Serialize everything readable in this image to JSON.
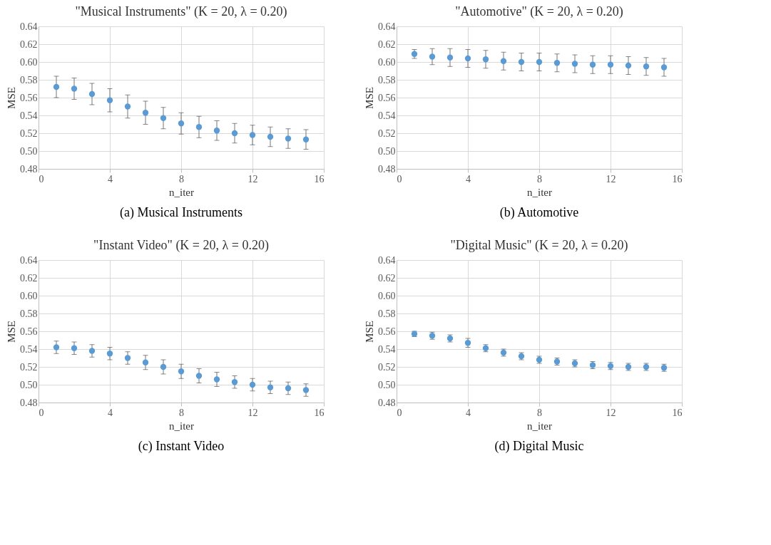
{
  "chart_data": [
    {
      "type": "scatter",
      "title": "\"Musical Instruments\" (K = 20, λ = 0.20)",
      "xlabel": "n_iter",
      "ylabel": "MSE",
      "color": "#5b9bd5",
      "marker": "circle",
      "grid": true,
      "x": [
        1,
        2,
        3,
        4,
        5,
        6,
        7,
        8,
        9,
        10,
        11,
        12,
        13,
        14,
        15
      ],
      "values": [
        0.572,
        0.57,
        0.564,
        0.557,
        0.55,
        0.543,
        0.537,
        0.531,
        0.527,
        0.523,
        0.52,
        0.518,
        0.516,
        0.514,
        0.513
      ],
      "errors": [
        0.012,
        0.012,
        0.012,
        0.013,
        0.013,
        0.013,
        0.012,
        0.012,
        0.012,
        0.011,
        0.011,
        0.011,
        0.011,
        0.011,
        0.011
      ],
      "xlim": [
        0,
        16
      ],
      "xticks": [
        0,
        4,
        8,
        12,
        16
      ],
      "ylim": [
        0.48,
        0.64
      ],
      "yticks": [
        {
          "value": 0.48,
          "label": "0.48"
        },
        {
          "value": 0.5,
          "label": "0.50"
        },
        {
          "value": 0.52,
          "label": "0.52"
        },
        {
          "value": 0.54,
          "label": "0.54"
        },
        {
          "value": 0.56,
          "label": "0.56"
        },
        {
          "value": 0.58,
          "label": "0.58"
        },
        {
          "value": 0.6,
          "label": "0.60"
        },
        {
          "value": 0.62,
          "label": "0.62"
        },
        {
          "value": 0.64,
          "label": "0.64"
        }
      ],
      "annotations": [
        "(a) Musical Instruments"
      ]
    },
    {
      "type": "scatter",
      "title": "\"Automotive\" (K = 20, λ = 0.20)",
      "xlabel": "n_iter",
      "ylabel": "MSE",
      "color": "#5b9bd5",
      "marker": "circle",
      "grid": true,
      "x": [
        1,
        2,
        3,
        4,
        5,
        6,
        7,
        8,
        9,
        10,
        11,
        12,
        13,
        14,
        15
      ],
      "values": [
        0.609,
        0.606,
        0.605,
        0.604,
        0.603,
        0.601,
        0.6,
        0.6,
        0.599,
        0.598,
        0.597,
        0.597,
        0.596,
        0.595,
        0.594
      ],
      "errors": [
        0.005,
        0.009,
        0.01,
        0.01,
        0.01,
        0.01,
        0.01,
        0.01,
        0.01,
        0.01,
        0.01,
        0.01,
        0.01,
        0.01,
        0.01
      ],
      "xlim": [
        0,
        16
      ],
      "xticks": [
        0,
        4,
        8,
        12,
        16
      ],
      "ylim": [
        0.48,
        0.64
      ],
      "yticks": [
        {
          "value": 0.48,
          "label": "0.48"
        },
        {
          "value": 0.5,
          "label": "0.50"
        },
        {
          "value": 0.52,
          "label": "0.52"
        },
        {
          "value": 0.54,
          "label": "0.54"
        },
        {
          "value": 0.56,
          "label": "0.56"
        },
        {
          "value": 0.58,
          "label": "0.58"
        },
        {
          "value": 0.6,
          "label": "0.60"
        },
        {
          "value": 0.62,
          "label": "0.62"
        },
        {
          "value": 0.64,
          "label": "0.64"
        }
      ],
      "annotations": [
        "(b) Automotive"
      ]
    },
    {
      "type": "scatter",
      "title": "\"Instant Video\" (K = 20, λ = 0.20)",
      "xlabel": "n_iter",
      "ylabel": "MSE",
      "color": "#5b9bd5",
      "marker": "circle",
      "grid": true,
      "x": [
        1,
        2,
        3,
        4,
        5,
        6,
        7,
        8,
        9,
        10,
        11,
        12,
        13,
        14,
        15
      ],
      "values": [
        0.542,
        0.541,
        0.538,
        0.535,
        0.53,
        0.525,
        0.52,
        0.515,
        0.51,
        0.506,
        0.503,
        0.5,
        0.497,
        0.496,
        0.494
      ],
      "errors": [
        0.007,
        0.007,
        0.007,
        0.007,
        0.007,
        0.008,
        0.008,
        0.008,
        0.008,
        0.008,
        0.007,
        0.007,
        0.007,
        0.007,
        0.007
      ],
      "xlim": [
        0,
        16
      ],
      "xticks": [
        0,
        4,
        8,
        12,
        16
      ],
      "ylim": [
        0.48,
        0.64
      ],
      "yticks": [
        {
          "value": 0.48,
          "label": "0.48"
        },
        {
          "value": 0.5,
          "label": "0.50"
        },
        {
          "value": 0.52,
          "label": "0.52"
        },
        {
          "value": 0.54,
          "label": "0.54"
        },
        {
          "value": 0.56,
          "label": "0.56"
        },
        {
          "value": 0.58,
          "label": "0.58"
        },
        {
          "value": 0.6,
          "label": "0.60"
        },
        {
          "value": 0.62,
          "label": "0.62"
        },
        {
          "value": 0.64,
          "label": "0.64"
        }
      ],
      "annotations": [
        "(c) Instant Video"
      ]
    },
    {
      "type": "scatter",
      "title": "\"Digital Music\" (K = 20, λ = 0.20)",
      "xlabel": "n_iter",
      "ylabel": "MSE",
      "color": "#5b9bd5",
      "marker": "circle",
      "grid": true,
      "x": [
        1,
        2,
        3,
        4,
        5,
        6,
        7,
        8,
        9,
        10,
        11,
        12,
        13,
        14,
        15
      ],
      "values": [
        0.557,
        0.555,
        0.552,
        0.547,
        0.541,
        0.536,
        0.532,
        0.528,
        0.526,
        0.524,
        0.522,
        0.521,
        0.52,
        0.52,
        0.519
      ],
      "errors": [
        0.003,
        0.004,
        0.004,
        0.005,
        0.004,
        0.004,
        0.004,
        0.004,
        0.004,
        0.004,
        0.004,
        0.004,
        0.004,
        0.004,
        0.004
      ],
      "xlim": [
        0,
        16
      ],
      "xticks": [
        0,
        4,
        8,
        12,
        16
      ],
      "ylim": [
        0.48,
        0.64
      ],
      "yticks": [
        {
          "value": 0.48,
          "label": "0.48"
        },
        {
          "value": 0.5,
          "label": "0.50"
        },
        {
          "value": 0.52,
          "label": "0.52"
        },
        {
          "value": 0.54,
          "label": "0.54"
        },
        {
          "value": 0.56,
          "label": "0.56"
        },
        {
          "value": 0.58,
          "label": "0.58"
        },
        {
          "value": 0.6,
          "label": "0.60"
        },
        {
          "value": 0.62,
          "label": "0.62"
        },
        {
          "value": 0.64,
          "label": "0.64"
        }
      ],
      "annotations": [
        "(d) Digital Music"
      ]
    }
  ]
}
